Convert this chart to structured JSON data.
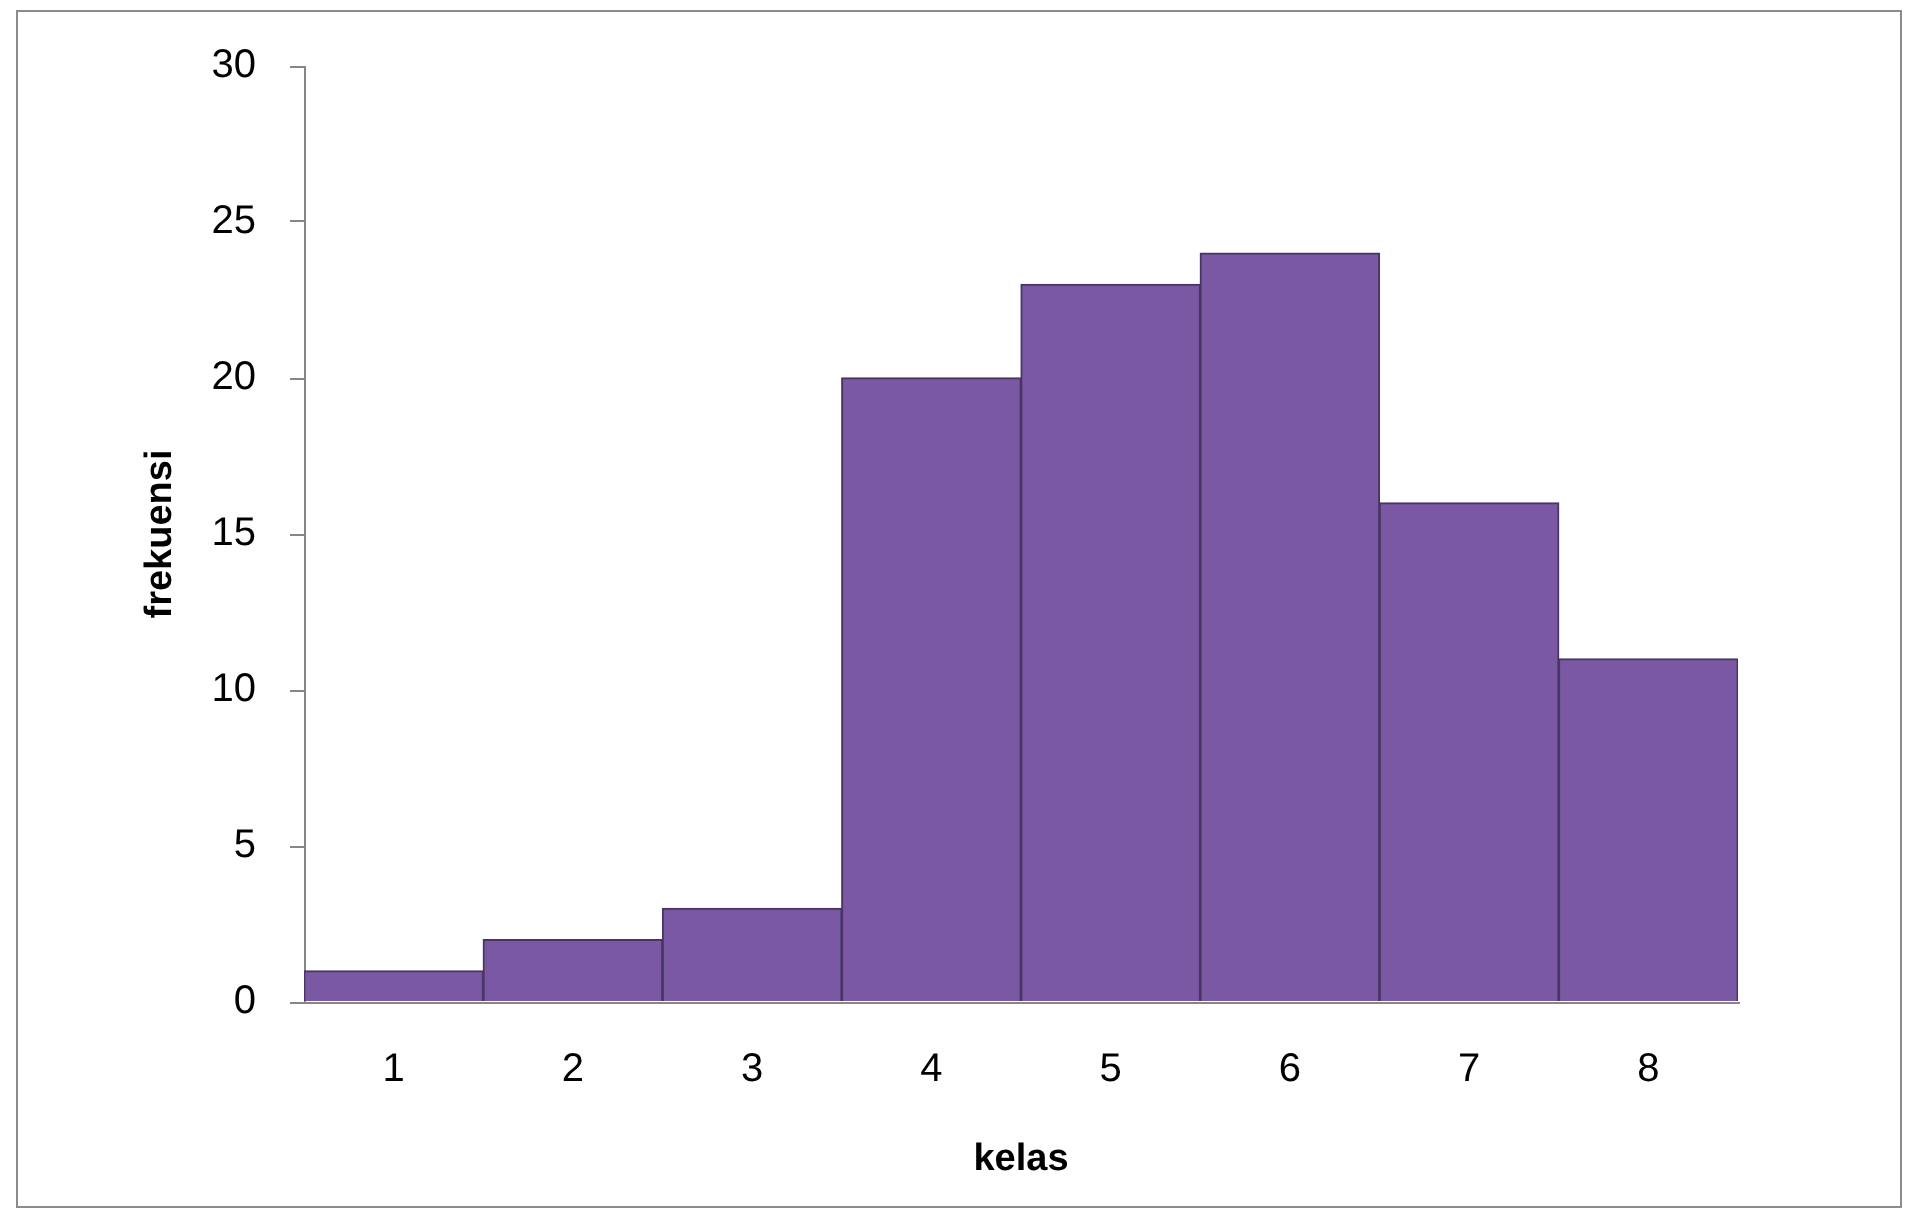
{
  "chart_data": {
    "type": "bar",
    "xlabel": "kelas",
    "ylabel": "frekuensi",
    "categories": [
      "1",
      "2",
      "3",
      "4",
      "5",
      "6",
      "7",
      "8"
    ],
    "values": [
      1,
      2,
      3,
      20,
      23,
      24,
      16,
      11
    ],
    "color": "#7a58a3",
    "ylim": [
      0,
      30
    ],
    "yticks": [
      0,
      5,
      10,
      15,
      20,
      25,
      30
    ]
  }
}
